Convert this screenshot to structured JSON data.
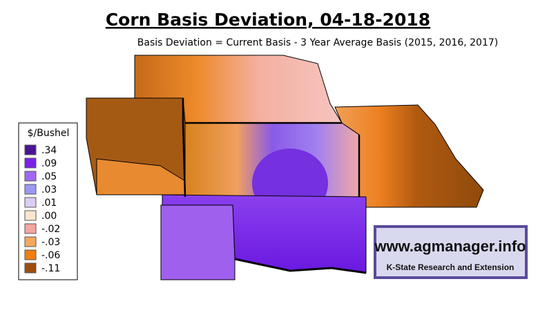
{
  "title": "Corn Basis Deviation, 04-18-2018",
  "subtitle": "Basis Deviation = Current Basis - 3 Year Average Basis (2015, 2016, 2017)",
  "legend": {
    "title": "$/Bushel",
    "items": [
      {
        "label": ".34",
        "color": "#4b1496"
      },
      {
        "label": ".09",
        "color": "#7b22e8"
      },
      {
        "label": ".05",
        "color": "#a068f0"
      },
      {
        "label": ".03",
        "color": "#9a9af2"
      },
      {
        "label": ".01",
        "color": "#dccdf6"
      },
      {
        "label": ".00",
        "color": "#fde6cf"
      },
      {
        "label": "-.02",
        "color": "#f4a6a0"
      },
      {
        "label": "-.03",
        "color": "#f3a95e"
      },
      {
        "label": "-.06",
        "color": "#ee7f12"
      },
      {
        "label": "-.11",
        "color": "#9c4f0c"
      }
    ]
  },
  "logo": {
    "url": "www.agmanager.info",
    "org": "K-State Research and Extension"
  }
}
